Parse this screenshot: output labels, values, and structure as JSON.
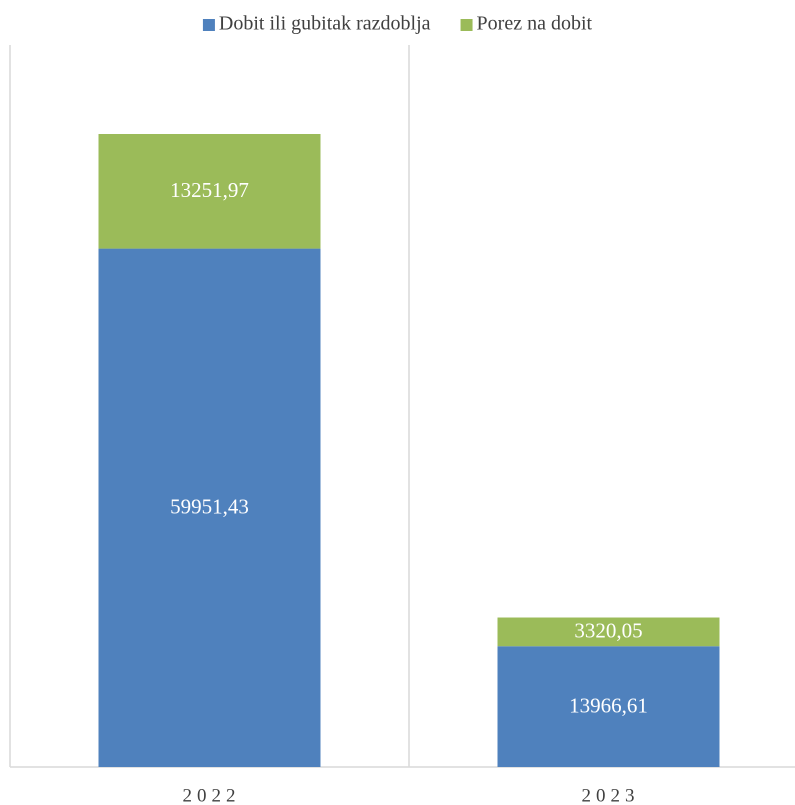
{
  "chart_data": {
    "type": "stacked_bar",
    "categories": [
      "2022",
      "2023"
    ],
    "series": [
      {
        "name": "Dobit ili gubitak razdoblja",
        "color": "#4f81bd",
        "values": [
          59951.43,
          13966.61
        ],
        "value_labels": [
          "59951,43",
          "13966,61"
        ]
      },
      {
        "name": "Porez na dobit",
        "color": "#9bbb59",
        "values": [
          13251.97,
          3320.05
        ],
        "value_labels": [
          "13251,97",
          "3320,05"
        ]
      }
    ],
    "legend": "top"
  }
}
